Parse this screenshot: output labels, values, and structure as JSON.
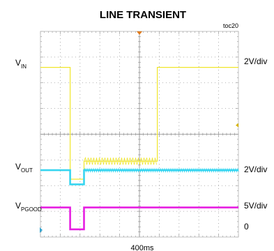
{
  "chart_data": {
    "type": "line",
    "title": "LINE TRANSIENT",
    "figure_number": "toc20",
    "time_scale": "400ms",
    "x": [
      0,
      1,
      2,
      3,
      4,
      5,
      6,
      7,
      8,
      9,
      10
    ],
    "xlim": [
      0,
      10
    ],
    "ylim": [
      -4,
      4
    ],
    "grid": true,
    "series": [
      {
        "name": "VIN",
        "name_main": "V",
        "name_sub": "IN",
        "scale": "2V/div",
        "color": "#f0e62a",
        "points": [
          [
            0,
            2.6
          ],
          [
            1.5,
            2.6
          ],
          [
            1.5,
            -1.75
          ],
          [
            2.2,
            -1.75
          ],
          [
            2.2,
            -1.05
          ],
          [
            5.9,
            -1.05
          ],
          [
            5.9,
            2.6
          ],
          [
            10,
            2.6
          ]
        ]
      },
      {
        "name": "VOUT",
        "name_main": "V",
        "name_sub": "OUT",
        "scale": "2V/div",
        "color": "#37d5f0",
        "points": [
          [
            0,
            -1.4
          ],
          [
            1.5,
            -1.4
          ],
          [
            1.5,
            -1.95
          ],
          [
            2.2,
            -1.95
          ],
          [
            2.2,
            -1.4
          ],
          [
            10,
            -1.4
          ]
        ]
      },
      {
        "name": "VPGOOD",
        "name_main": "V",
        "name_sub": "PGOOD",
        "scale": "5V/div",
        "color": "#e61ee1",
        "points": [
          [
            0,
            -2.85
          ],
          [
            1.5,
            -2.85
          ],
          [
            1.5,
            -3.7
          ],
          [
            2.2,
            -3.7
          ],
          [
            2.2,
            -2.85
          ],
          [
            10,
            -2.85
          ]
        ]
      }
    ],
    "zero_label": "0"
  }
}
